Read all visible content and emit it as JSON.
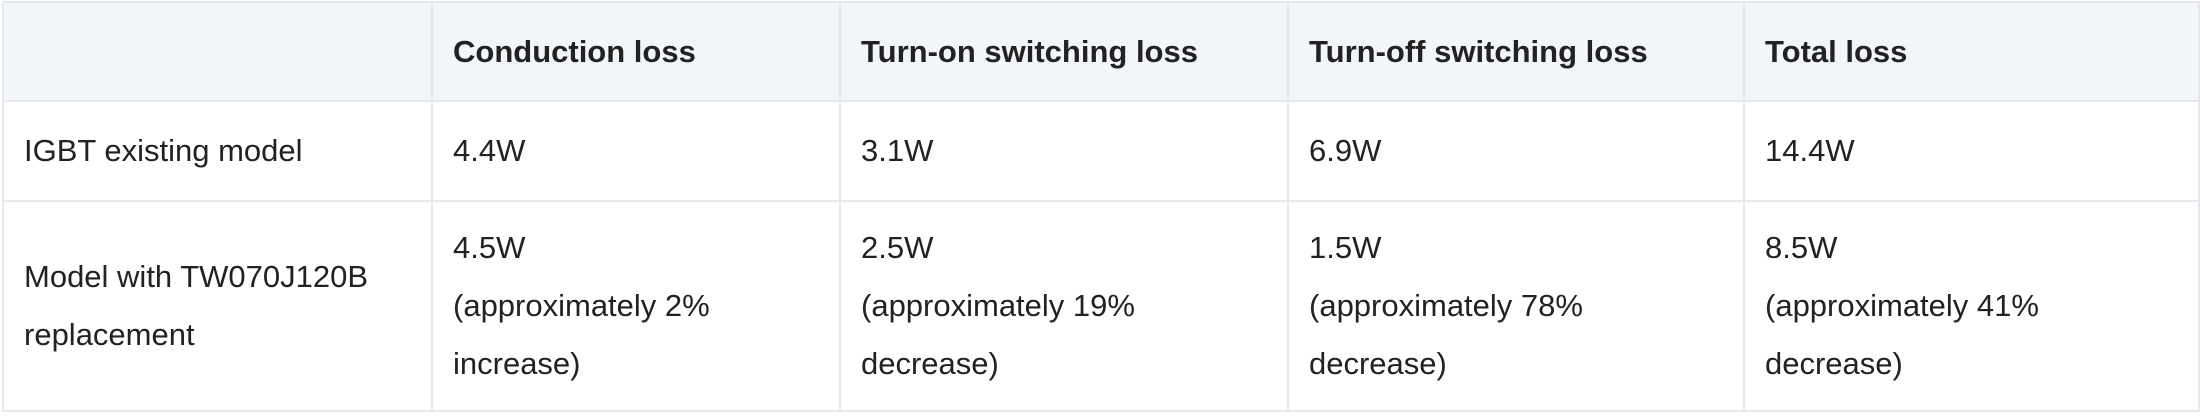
{
  "table": {
    "header": [
      "",
      "Conduction loss",
      "Turn-on switching loss",
      "Turn-off switching loss",
      "Total loss"
    ],
    "rows": [
      [
        [
          "IGBT existing model"
        ],
        [
          "4.4W"
        ],
        [
          "3.1W"
        ],
        [
          "6.9W"
        ],
        [
          "14.4W"
        ]
      ],
      [
        [
          "Model with TW070J120B replacement"
        ],
        [
          "4.5W",
          "(approximately 2% increase)"
        ],
        [
          "2.5W",
          "(approximately 19% decrease)"
        ],
        [
          "1.5W",
          "(approximately 78% decrease)"
        ],
        [
          "8.5W",
          "(approximately 41% decrease)"
        ]
      ]
    ]
  }
}
